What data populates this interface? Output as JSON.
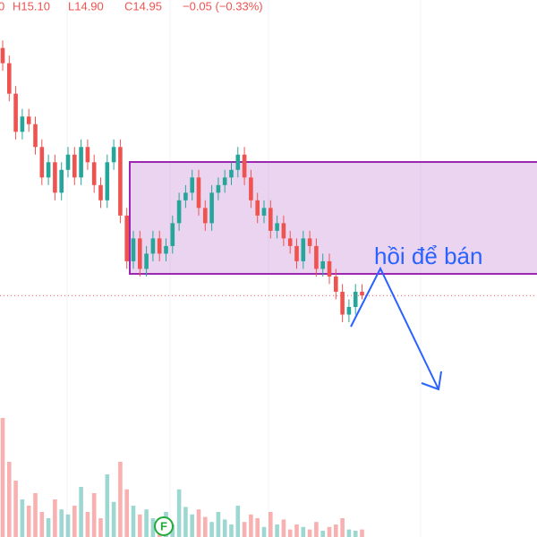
{
  "chart_data": {
    "type": "candlestick",
    "header": [
      "0",
      "H15.10",
      "L14.90",
      "C14.95",
      "−0.05 (−0.33%)"
    ],
    "annotation": "hồi để bán",
    "event_marker": "F",
    "up_color": "#26a69a",
    "down_color": "#ef5350",
    "ylim": [
      13.66,
      18.83
    ],
    "open": [
      18.2,
      18.0,
      17.6,
      17.1,
      17.3,
      17.2,
      16.9,
      16.5,
      16.7,
      16.3,
      16.6,
      16.8,
      16.5,
      16.9,
      16.7,
      16.4,
      16.2,
      16.7,
      16.9,
      16.0,
      15.4,
      15.7,
      15.3,
      15.5,
      15.7,
      15.5,
      15.6,
      15.9,
      16.2,
      16.3,
      16.5,
      16.1,
      15.9,
      16.3,
      16.4,
      16.5,
      16.6,
      16.8,
      16.5,
      16.2,
      16.0,
      16.1,
      15.8,
      15.9,
      15.7,
      15.6,
      15.4,
      15.7,
      15.6,
      15.3,
      15.4,
      15.2,
      15.0,
      14.7,
      14.8,
      15.0
    ],
    "high": [
      18.3,
      18.1,
      17.7,
      17.4,
      17.4,
      17.3,
      17.0,
      16.8,
      16.8,
      16.7,
      16.9,
      16.9,
      17.0,
      17.0,
      16.8,
      16.5,
      16.8,
      17.0,
      17.0,
      16.1,
      15.8,
      15.8,
      15.6,
      15.8,
      15.8,
      15.7,
      16.0,
      16.3,
      16.4,
      16.6,
      16.6,
      16.2,
      16.4,
      16.5,
      16.6,
      16.7,
      16.9,
      16.9,
      16.6,
      16.3,
      16.2,
      16.2,
      16.0,
      16.0,
      15.8,
      15.7,
      15.8,
      15.8,
      15.7,
      15.5,
      15.5,
      15.3,
      15.1,
      14.9,
      15.1,
      15.1
    ],
    "low": [
      17.9,
      17.5,
      17.0,
      17.0,
      17.1,
      16.8,
      16.4,
      16.4,
      16.2,
      16.2,
      16.5,
      16.4,
      16.4,
      16.6,
      16.3,
      16.1,
      16.1,
      16.6,
      15.9,
      15.3,
      15.3,
      15.2,
      15.2,
      15.4,
      15.4,
      15.4,
      15.5,
      15.8,
      16.1,
      16.2,
      16.0,
      15.8,
      15.8,
      16.2,
      16.3,
      16.4,
      16.5,
      16.4,
      16.1,
      15.9,
      15.9,
      15.7,
      15.7,
      15.6,
      15.5,
      15.3,
      15.3,
      15.5,
      15.2,
      15.2,
      15.1,
      14.9,
      14.6,
      14.6,
      14.7,
      14.9
    ],
    "close": [
      18.0,
      17.6,
      17.1,
      17.3,
      17.2,
      16.9,
      16.5,
      16.7,
      16.3,
      16.6,
      16.8,
      16.5,
      16.9,
      16.7,
      16.4,
      16.2,
      16.7,
      16.9,
      16.0,
      15.4,
      15.7,
      15.3,
      15.5,
      15.7,
      15.5,
      15.6,
      15.9,
      16.2,
      16.3,
      16.5,
      16.1,
      15.9,
      16.3,
      16.4,
      16.5,
      16.6,
      16.8,
      16.5,
      16.2,
      16.0,
      16.1,
      15.8,
      15.9,
      15.7,
      15.6,
      15.4,
      15.7,
      15.6,
      15.3,
      15.4,
      15.2,
      15.0,
      14.7,
      14.8,
      15.0,
      14.95
    ],
    "volume_ylim": [
      0,
      100
    ],
    "volume": [
      95,
      60,
      45,
      30,
      25,
      35,
      20,
      15,
      30,
      22,
      18,
      25,
      40,
      20,
      35,
      15,
      50,
      28,
      60,
      38,
      25,
      18,
      22,
      15,
      12,
      20,
      10,
      38,
      24,
      18,
      22,
      16,
      12,
      20,
      14,
      10,
      25,
      12,
      18,
      15,
      8,
      20,
      10,
      14,
      6,
      10,
      8,
      6,
      12,
      5,
      8,
      10,
      15,
      6,
      5,
      6
    ]
  }
}
